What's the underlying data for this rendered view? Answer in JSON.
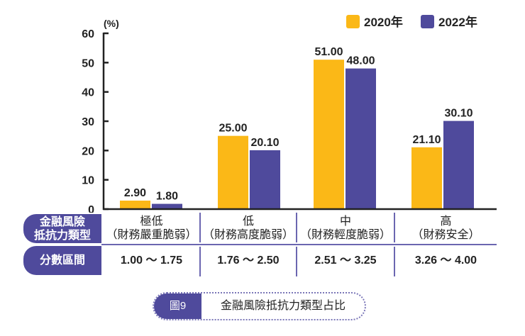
{
  "chart_data": {
    "type": "bar",
    "ylabel": "(%)",
    "ylim": [
      0,
      60
    ],
    "yticks": [
      "0",
      "10",
      "20",
      "30",
      "40",
      "50",
      "60"
    ],
    "categories": [
      "極低（財務嚴重脆弱）",
      "低（財務高度脆弱）",
      "中（財務輕度脆弱）",
      "高（財務安全）"
    ],
    "series": [
      {
        "name": "2020年",
        "color": "#fbb817",
        "values": [
          2.9,
          25.0,
          51.0,
          21.1
        ],
        "labels": [
          "2.90",
          "25.00",
          "51.00",
          "21.10"
        ]
      },
      {
        "name": "2022年",
        "color": "#4f4a9c",
        "values": [
          1.8,
          20.1,
          48.0,
          30.1
        ],
        "labels": [
          "1.80",
          "20.10",
          "48.00",
          "30.10"
        ]
      }
    ],
    "legend": "top-right",
    "grid": false
  },
  "table": {
    "row1_label": [
      "金融風險",
      "抵抗力類型"
    ],
    "row2_label": "分數區間",
    "types": [
      {
        "name": "極低",
        "desc": "（財務嚴重脆弱）",
        "range": "1.00 ～ 1.75"
      },
      {
        "name": "低",
        "desc": "（財務高度脆弱）",
        "range": "1.76 ～ 2.50"
      },
      {
        "name": "中",
        "desc": "（財務輕度脆弱）",
        "range": "2.51 ～ 3.25"
      },
      {
        "name": "高",
        "desc": "（財務安全）",
        "range": "3.26 ～ 4.00"
      }
    ]
  },
  "caption": {
    "figure": "圖9",
    "title": "金融風險抵抗力類型占比"
  },
  "colors": {
    "accent": "#4f4a9c",
    "yellow": "#fbb817"
  }
}
